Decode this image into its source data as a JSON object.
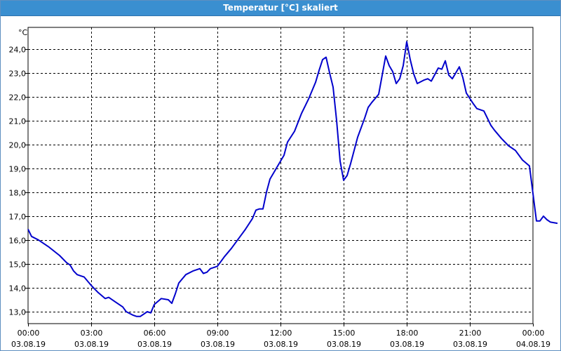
{
  "window": {
    "title": "Temperatur [°C] skaliert"
  },
  "chart_data": {
    "type": "line",
    "title": "Temperatur [°C] skaliert",
    "ylabel": "°C",
    "xlabel": "",
    "xlim": [
      "03.08.19 00:00",
      "04.08.19 00:00"
    ],
    "ylim": [
      12.5,
      24.9
    ],
    "grid": true,
    "y_ticks": [
      "13,0",
      "14,0",
      "15,0",
      "16,0",
      "17,0",
      "18,0",
      "19,0",
      "20,0",
      "21,0",
      "22,0",
      "23,0",
      "24,0"
    ],
    "x_ticks": [
      {
        "time": "00:00",
        "date": "03.08.19"
      },
      {
        "time": "03:00",
        "date": "03.08.19"
      },
      {
        "time": "06:00",
        "date": "03.08.19"
      },
      {
        "time": "09:00",
        "date": "03.08.19"
      },
      {
        "time": "12:00",
        "date": "03.08.19"
      },
      {
        "time": "15:00",
        "date": "03.08.19"
      },
      {
        "time": "18:00",
        "date": "03.08.19"
      },
      {
        "time": "21:00",
        "date": "03.08.19"
      },
      {
        "time": "00:00",
        "date": "04.08.19"
      }
    ],
    "series": [
      {
        "color": "#0000cc",
        "points": [
          [
            "03.08.19 00:00",
            16.45
          ],
          [
            "03.08.19 00:10",
            16.15
          ],
          [
            "03.08.19 00:30",
            16.0
          ],
          [
            "03.08.19 01:00",
            15.7
          ],
          [
            "03.08.19 01:30",
            15.35
          ],
          [
            "03.08.19 01:50",
            15.05
          ],
          [
            "03.08.19 02:00",
            14.95
          ],
          [
            "03.08.19 02:10",
            14.7
          ],
          [
            "03.08.19 02:20",
            14.55
          ],
          [
            "03.08.19 02:30",
            14.5
          ],
          [
            "03.08.19 02:40",
            14.45
          ],
          [
            "03.08.19 03:00",
            14.1
          ],
          [
            "03.08.19 03:20",
            13.8
          ],
          [
            "03.08.19 03:40",
            13.55
          ],
          [
            "03.08.19 03:50",
            13.6
          ],
          [
            "03.08.19 04:10",
            13.4
          ],
          [
            "03.08.19 04:30",
            13.2
          ],
          [
            "03.08.19 04:40",
            13.0
          ],
          [
            "03.08.19 05:00",
            12.85
          ],
          [
            "03.08.19 05:10",
            12.8
          ],
          [
            "03.08.19 05:20",
            12.8
          ],
          [
            "03.08.19 05:40",
            13.0
          ],
          [
            "03.08.19 05:50",
            12.95
          ],
          [
            "03.08.19 06:00",
            13.3
          ],
          [
            "03.08.19 06:20",
            13.55
          ],
          [
            "03.08.19 06:40",
            13.5
          ],
          [
            "03.08.19 06:50",
            13.35
          ],
          [
            "03.08.19 07:00",
            13.75
          ],
          [
            "03.08.19 07:10",
            14.2
          ],
          [
            "03.08.19 07:30",
            14.55
          ],
          [
            "03.08.19 07:50",
            14.7
          ],
          [
            "03.08.19 08:10",
            14.8
          ],
          [
            "03.08.19 08:20",
            14.6
          ],
          [
            "03.08.19 08:30",
            14.65
          ],
          [
            "03.08.19 08:40",
            14.8
          ],
          [
            "03.08.19 09:00",
            14.9
          ],
          [
            "03.08.19 09:20",
            15.3
          ],
          [
            "03.08.19 09:40",
            15.65
          ],
          [
            "03.08.19 10:00",
            16.05
          ],
          [
            "03.08.19 10:20",
            16.45
          ],
          [
            "03.08.19 10:40",
            16.9
          ],
          [
            "03.08.19 10:50",
            17.25
          ],
          [
            "03.08.19 11:00",
            17.3
          ],
          [
            "03.08.19 11:10",
            17.3
          ],
          [
            "03.08.19 11:20",
            18.0
          ],
          [
            "03.08.19 11:30",
            18.55
          ],
          [
            "03.08.19 11:50",
            19.05
          ],
          [
            "03.08.19 12:10",
            19.55
          ],
          [
            "03.08.19 12:20",
            20.1
          ],
          [
            "03.08.19 12:40",
            20.55
          ],
          [
            "03.08.19 13:00",
            21.3
          ],
          [
            "03.08.19 13:10",
            21.6
          ],
          [
            "03.08.19 13:20",
            21.9
          ],
          [
            "03.08.19 13:40",
            22.6
          ],
          [
            "03.08.19 13:50",
            23.1
          ],
          [
            "03.08.19 14:00",
            23.55
          ],
          [
            "03.08.19 14:10",
            23.65
          ],
          [
            "03.08.19 14:20",
            23.0
          ],
          [
            "03.08.19 14:30",
            22.4
          ],
          [
            "03.08.19 14:40",
            21.0
          ],
          [
            "03.08.19 14:50",
            19.3
          ],
          [
            "03.08.19 15:00",
            18.5
          ],
          [
            "03.08.19 15:10",
            18.7
          ],
          [
            "03.08.19 15:20",
            19.2
          ],
          [
            "03.08.19 15:40",
            20.3
          ],
          [
            "03.08.19 16:00",
            21.1
          ],
          [
            "03.08.19 16:10",
            21.55
          ],
          [
            "03.08.19 16:20",
            21.75
          ],
          [
            "03.08.19 16:40",
            22.1
          ],
          [
            "03.08.19 16:50",
            22.9
          ],
          [
            "03.08.19 17:00",
            23.7
          ],
          [
            "03.08.19 17:10",
            23.3
          ],
          [
            "03.08.19 17:20",
            23.05
          ],
          [
            "03.08.19 17:30",
            22.55
          ],
          [
            "03.08.19 17:40",
            22.75
          ],
          [
            "03.08.19 17:50",
            23.3
          ],
          [
            "03.08.19 18:00",
            24.3
          ],
          [
            "03.08.19 18:10",
            23.55
          ],
          [
            "03.08.19 18:20",
            22.95
          ],
          [
            "03.08.19 18:30",
            22.55
          ],
          [
            "03.08.19 18:50",
            22.7
          ],
          [
            "03.08.19 19:00",
            22.75
          ],
          [
            "03.08.19 19:10",
            22.65
          ],
          [
            "03.08.19 19:30",
            23.2
          ],
          [
            "03.08.19 19:40",
            23.15
          ],
          [
            "03.08.19 19:50",
            23.5
          ],
          [
            "03.08.19 20:00",
            22.9
          ],
          [
            "03.08.19 20:10",
            22.75
          ],
          [
            "03.08.19 20:30",
            23.25
          ],
          [
            "03.08.19 20:40",
            22.8
          ],
          [
            "03.08.19 20:50",
            22.15
          ],
          [
            "03.08.19 21:10",
            21.7
          ],
          [
            "03.08.19 21:20",
            21.5
          ],
          [
            "03.08.19 21:40",
            21.4
          ],
          [
            "03.08.19 22:00",
            20.8
          ],
          [
            "03.08.19 22:10",
            20.6
          ],
          [
            "03.08.19 22:30",
            20.25
          ],
          [
            "03.08.19 22:50",
            19.95
          ],
          [
            "03.08.19 23:10",
            19.75
          ],
          [
            "03.08.19 23:30",
            19.35
          ],
          [
            "03.08.19 23:50",
            19.1
          ],
          [
            "04.08.19 00:10",
            16.8
          ],
          [
            "04.08.19 00:20",
            16.8
          ],
          [
            "04.08.19 00:30",
            17.0
          ],
          [
            "04.08.19 00:40",
            16.85
          ],
          [
            "04.08.19 00:50",
            16.75
          ],
          [
            "04.08.19 01:10",
            16.7
          ]
        ]
      }
    ]
  }
}
